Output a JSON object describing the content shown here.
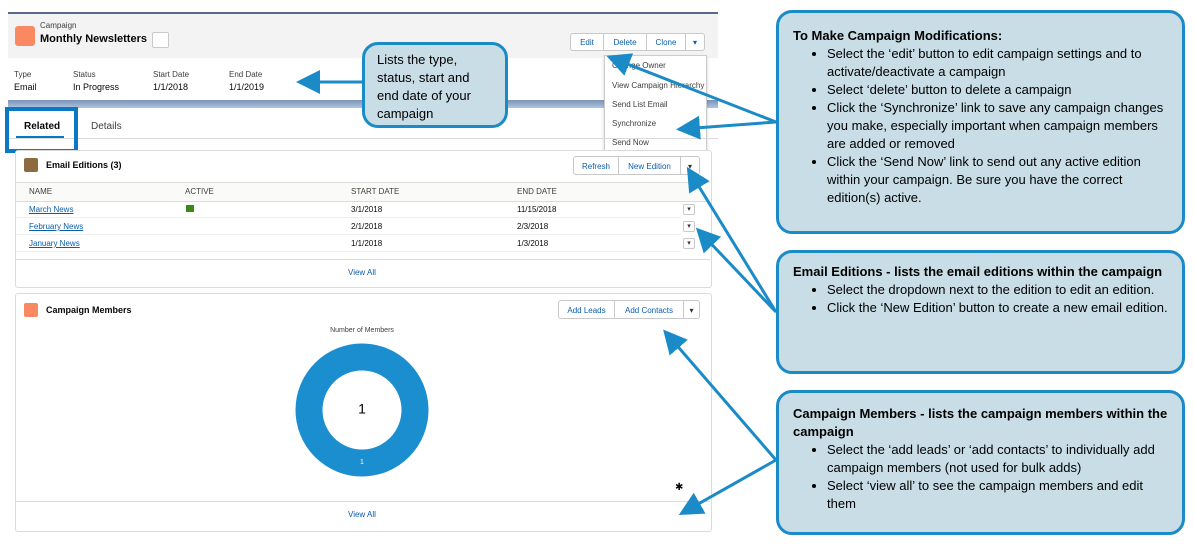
{
  "header": {
    "object_type": "Campaign",
    "name": "Monthly Newsletters",
    "buttons": [
      "Edit",
      "Delete",
      "Clone"
    ]
  },
  "menu": [
    "Change Owner",
    "View Campaign Hierarchy",
    "Send List Email",
    "Synchronize",
    "Send Now"
  ],
  "fields": [
    {
      "label": "Type",
      "value": "Email"
    },
    {
      "label": "Status",
      "value": "In Progress"
    },
    {
      "label": "Start Date",
      "value": "1/1/2018"
    },
    {
      "label": "End Date",
      "value": "1/1/2019"
    }
  ],
  "tabs": [
    "Related",
    "Details"
  ],
  "email_editions": {
    "title": "Email Editions (3)",
    "buttons": [
      "Refresh",
      "New Edition"
    ],
    "columns": [
      "NAME",
      "ACTIVE",
      "START DATE",
      "END DATE"
    ],
    "rows": [
      [
        "March News",
        "3/1/2018",
        "11/15/2018"
      ],
      [
        "February News",
        "2/1/2018",
        "2/3/2018"
      ],
      [
        "January News",
        "1/1/2018",
        "1/3/2018"
      ]
    ],
    "view_all": "View All"
  },
  "campaign_members": {
    "title": "Campaign Members",
    "buttons": [
      "Add Leads",
      "Add Contacts"
    ],
    "chart_title": "Number of Members",
    "total": "1",
    "segment_label": "1",
    "view_all": "View All"
  },
  "callouts": [
    {
      "text": "Lists the type, status, start and end date of your campaign"
    },
    {
      "title": "To Make Campaign Modifications:",
      "bullets": [
        "Select the ‘edit’ button to edit campaign settings and to activate/deactivate a campaign",
        "Select ‘delete’ button to delete a campaign",
        "Click the ‘Synchronize’ link to save any campaign changes you make, especially important when campaign members are added or removed",
        "Click the ‘Send Now’ link to send out any active edition within your campaign. Be sure you have the correct edition(s) active."
      ]
    },
    {
      "title": "Email Editions - lists the email editions within the campaign",
      "bullets": [
        "Select the dropdown next to the edition to edit an edition.",
        "Click the ‘New Edition’ button to create a new email edition."
      ]
    },
    {
      "title": "Campaign Members - lists the campaign members within the campaign",
      "bullets": [
        "Select the ‘add leads’ or ‘add contacts’ to individually add campaign members (not used for bulk adds)",
        "Select ‘view all’ to see the campaign members and edit them"
      ]
    }
  ]
}
